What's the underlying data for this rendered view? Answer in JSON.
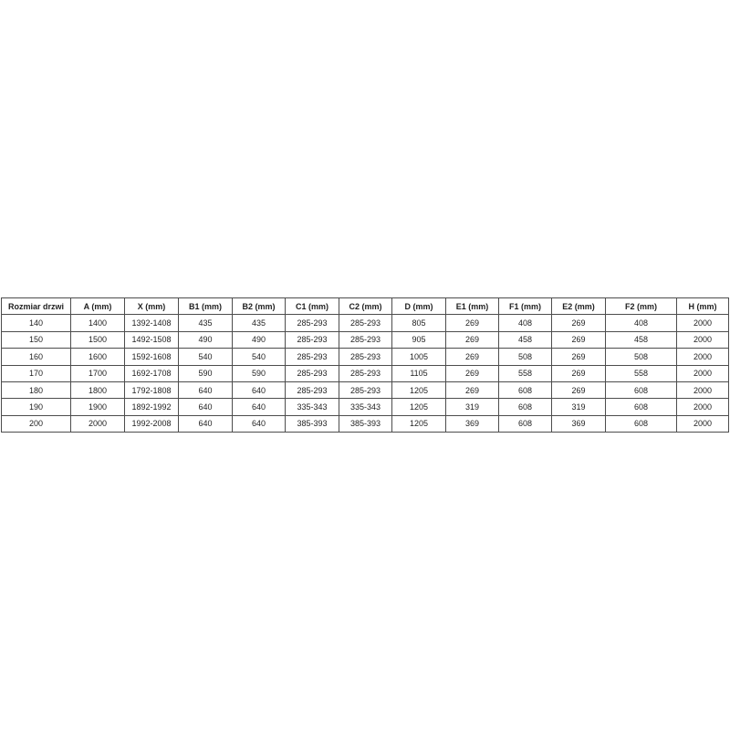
{
  "table": {
    "headers": [
      "Rozmiar drzwi",
      "A (mm)",
      "X (mm)",
      "B1 (mm)",
      "B2 (mm)",
      "C1 (mm)",
      "C2 (mm)",
      "D (mm)",
      "E1 (mm)",
      "F1 (mm)",
      "E2 (mm)",
      "F2 (mm)",
      "H (mm)"
    ],
    "rows": [
      [
        "140",
        "1400",
        "1392-1408",
        "435",
        "435",
        "285-293",
        "285-293",
        "805",
        "269",
        "408",
        "269",
        "408",
        "2000"
      ],
      [
        "150",
        "1500",
        "1492-1508",
        "490",
        "490",
        "285-293",
        "285-293",
        "905",
        "269",
        "458",
        "269",
        "458",
        "2000"
      ],
      [
        "160",
        "1600",
        "1592-1608",
        "540",
        "540",
        "285-293",
        "285-293",
        "1005",
        "269",
        "508",
        "269",
        "508",
        "2000"
      ],
      [
        "170",
        "1700",
        "1692-1708",
        "590",
        "590",
        "285-293",
        "285-293",
        "1105",
        "269",
        "558",
        "269",
        "558",
        "2000"
      ],
      [
        "180",
        "1800",
        "1792-1808",
        "640",
        "640",
        "285-293",
        "285-293",
        "1205",
        "269",
        "608",
        "269",
        "608",
        "2000"
      ],
      [
        "190",
        "1900",
        "1892-1992",
        "640",
        "640",
        "335-343",
        "335-343",
        "1205",
        "319",
        "608",
        "319",
        "608",
        "2000"
      ],
      [
        "200",
        "2000",
        "1992-2008",
        "640",
        "640",
        "385-393",
        "385-393",
        "1205",
        "369",
        "608",
        "369",
        "608",
        "2000"
      ]
    ]
  },
  "colors": {
    "border": "#4d4d4d",
    "text": "#1f1f1f",
    "background": "#ffffff"
  }
}
